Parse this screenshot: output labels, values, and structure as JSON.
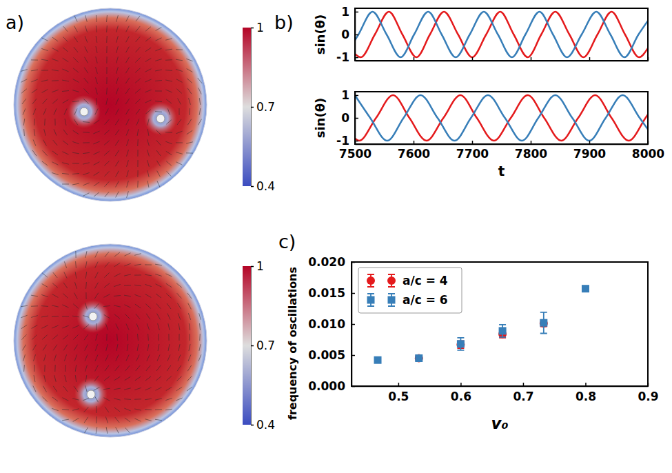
{
  "chart_data": [
    {
      "type": "image",
      "title": "a)",
      "colorbar": {
        "range": [
          0.4,
          1
        ],
        "ticks": [
          1,
          0.7,
          0.4
        ]
      }
    },
    {
      "type": "image",
      "colorbar": {
        "range": [
          0.4,
          1
        ],
        "ticks": [
          1,
          0.7,
          0.4
        ]
      }
    },
    {
      "type": "line",
      "title": "b)",
      "ylabel": "sin(θ)",
      "xlim": [
        7500,
        8000
      ],
      "ylim": [
        -1.15,
        1.15
      ],
      "xticks": [
        7500,
        7600,
        7700,
        7800,
        7900,
        8000
      ],
      "yticks": [
        -1,
        0,
        1
      ],
      "tick_labels": "y",
      "series": [
        {
          "color": "#e41a1c",
          "x": [
            7500,
            7510,
            7534,
            7558,
            7581,
            7605,
            7628,
            7652,
            7676,
            7700,
            7724,
            7748,
            7771,
            7795,
            7818,
            7842,
            7866,
            7890,
            7914,
            7938,
            7961,
            7985,
            8000
          ],
          "values": [
            -0.85,
            -1,
            0,
            1,
            0,
            -1,
            0,
            1,
            0,
            -1,
            0,
            1,
            0,
            -1,
            0,
            1,
            0,
            -1,
            0,
            1,
            0,
            -1,
            -0.6
          ]
        },
        {
          "color": "#377eb8",
          "x": [
            7500,
            7506,
            7530,
            7554,
            7578,
            7601,
            7625,
            7648,
            7672,
            7696,
            7720,
            7744,
            7768,
            7791,
            7815,
            7838,
            7862,
            7887,
            7912,
            7936,
            7960,
            7984,
            8000
          ],
          "values": [
            -0.25,
            0,
            1,
            0,
            -1,
            0,
            1,
            0,
            -1,
            0,
            1,
            0,
            -1,
            0,
            1,
            0,
            -1,
            0,
            1,
            0,
            -1,
            0,
            0.6
          ]
        }
      ]
    },
    {
      "type": "line",
      "ylabel": "sin(θ)",
      "xlabel": "t",
      "xlim": [
        7500,
        8000
      ],
      "ylim": [
        -1.15,
        1.15
      ],
      "xticks": [
        7500,
        7600,
        7700,
        7800,
        7900,
        8000
      ],
      "yticks": [
        -1,
        0,
        1
      ],
      "series": [
        {
          "color": "#e41a1c",
          "x": [
            7500,
            7507,
            7536,
            7565,
            7593,
            7622,
            7651,
            7680,
            7708,
            7737,
            7766,
            7795,
            7823,
            7852,
            7881,
            7910,
            7938,
            7967,
            7996,
            8000
          ],
          "values": [
            -0.9,
            -1,
            0,
            1,
            0,
            -1,
            0,
            1,
            0,
            -1,
            0,
            1,
            0,
            -1,
            0,
            1,
            0,
            -1,
            0,
            0.15
          ]
        },
        {
          "color": "#377eb8",
          "x": [
            7500,
            7526,
            7555,
            7583,
            7612,
            7641,
            7670,
            7698,
            7727,
            7756,
            7785,
            7813,
            7842,
            7871,
            7900,
            7928,
            7957,
            7986,
            8000
          ],
          "values": [
            0.99,
            0,
            -1,
            0,
            1,
            0,
            -1,
            0,
            1,
            0,
            -1,
            0,
            1,
            0,
            -1,
            0,
            1,
            0,
            -0.5
          ]
        }
      ]
    },
    {
      "type": "scatter",
      "title": "c)",
      "xlabel": "v₀",
      "ylabel": "frequency of oscillations",
      "xlim": [
        0.425,
        0.9
      ],
      "ylim": [
        0,
        0.02
      ],
      "xticks": [
        0.5,
        0.6,
        0.7,
        0.8,
        0.9
      ],
      "yticks": [
        {
          "value": 0,
          "label": "0.000"
        },
        {
          "value": 0.005,
          "label": "0.005"
        },
        {
          "value": 0.01,
          "label": "0.010"
        },
        {
          "value": 0.015,
          "label": "0.015"
        },
        {
          "value": 0.02,
          "label": "0.020"
        }
      ],
      "legend": "upper left",
      "series": [
        {
          "name": "a/c = 4",
          "color": "#e41a1c",
          "marker": "circle",
          "x": [
            0.533,
            0.6,
            0.667,
            0.733
          ],
          "values": [
            0.0045,
            0.0067,
            0.0084,
            0.0101
          ],
          "errors": [
            0.0004,
            0.0006,
            0.0006,
            0.0005
          ]
        },
        {
          "name": "a/c = 6",
          "color": "#377eb8",
          "marker": "square",
          "x": [
            0.467,
            0.533,
            0.6,
            0.667,
            0.733,
            0.8
          ],
          "values": [
            0.0042,
            0.0045,
            0.0068,
            0.0089,
            0.0102,
            0.0157
          ],
          "errors": [
            0.0003,
            0.0003,
            0.001,
            0.001,
            0.0017,
            0.0004
          ]
        }
      ]
    }
  ]
}
